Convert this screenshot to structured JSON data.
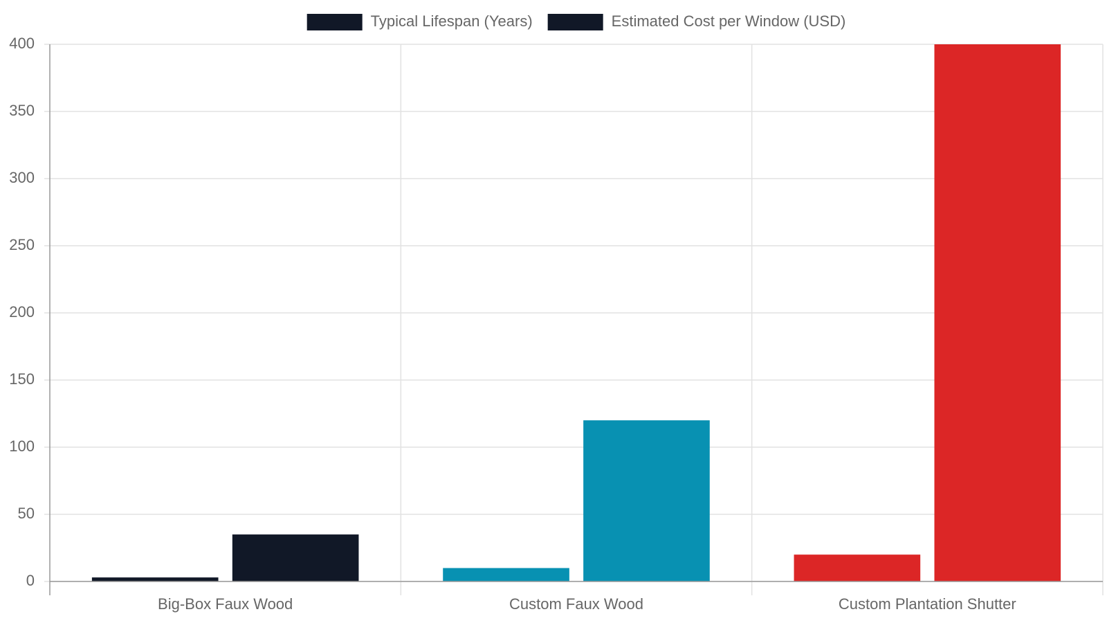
{
  "chart_data": {
    "type": "bar",
    "categories": [
      "Big-Box Faux Wood",
      "Custom Faux Wood",
      "Custom Plantation Shutter"
    ],
    "series": [
      {
        "name": "Typical Lifespan (Years)",
        "colors": [
          "#111827",
          "#0891b2",
          "#dc2626"
        ],
        "values": [
          3,
          10,
          20
        ]
      },
      {
        "name": "Estimated Cost per Window (USD)",
        "colors": [
          "#111827",
          "#0891b2",
          "#dc2626"
        ],
        "values": [
          35,
          120,
          400
        ]
      }
    ],
    "ylim": [
      0,
      400
    ],
    "yticks": [
      0,
      50,
      100,
      150,
      200,
      250,
      300,
      350,
      400
    ],
    "grid": true,
    "legend": "top"
  }
}
